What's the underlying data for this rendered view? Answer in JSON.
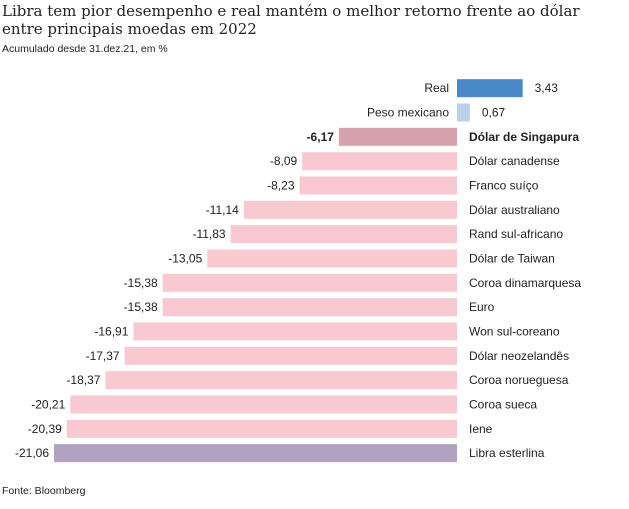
{
  "title": "Libra tem pior desempenho e real mantém o melhor retorno frente ao dólar entre principais moedas em 2022",
  "subtitle": "Acumulado desde 31.dez.21, em %",
  "source": "Fonte: Bloomberg",
  "chart_data": {
    "type": "bar",
    "orientation": "horizontal",
    "title": "Libra tem pior desempenho e real mantém o melhor retorno frente ao dólar entre principais moedas em 2022",
    "subtitle": "Acumulado desde 31.dez.21, em %",
    "categories": [
      "Real",
      "Peso mexicano",
      "Dólar de Singapura",
      "Dólar canadense",
      "Franco suíço",
      "Dólar australiano",
      "Rand sul-africano",
      "Dólar de Taiwan",
      "Coroa dinamarquesa",
      "Euro",
      "Won sul-coreano",
      "Dólar neozelandês",
      "Coroa norueguesa",
      "Coroa sueca",
      "Iene",
      "Libra esterlina"
    ],
    "values": [
      3.43,
      0.67,
      -6.17,
      -8.09,
      -8.23,
      -11.14,
      -11.83,
      -13.05,
      -15.38,
      -15.38,
      -16.91,
      -17.37,
      -18.37,
      -20.21,
      -20.39,
      -21.06
    ],
    "value_labels": [
      "3,43",
      "0,67",
      "-6,17",
      "-8,09",
      "-8,23",
      "-11,14",
      "-11,83",
      "-13,05",
      "-15,38",
      "-15,38",
      "-16,91",
      "-17,37",
      "-18,37",
      "-20,21",
      "-20,39",
      "-21,06"
    ],
    "bar_colors": [
      "#4a88c7",
      "#b9d0ea",
      "#d5a2ad",
      "#f8c9d1",
      "#f8c9d1",
      "#f8c9d1",
      "#f8c9d1",
      "#f8c9d1",
      "#f8c9d1",
      "#f8c9d1",
      "#f8c9d1",
      "#f8c9d1",
      "#f8c9d1",
      "#f8c9d1",
      "#f8c9d1",
      "#b3a1c1"
    ],
    "bold_categories": [
      "Dólar de Singapura"
    ],
    "xlim": [
      -21.06,
      3.43
    ],
    "grid": false,
    "legend": "none",
    "source": "Fonte: Bloomberg"
  }
}
